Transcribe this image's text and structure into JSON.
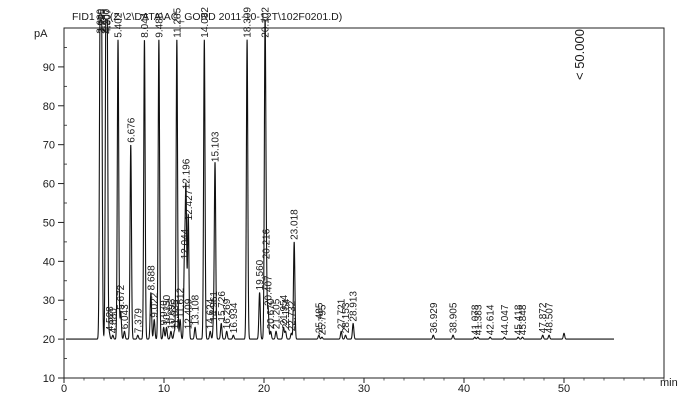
{
  "chart_data": {
    "type": "line",
    "title": "FID1 A, (Z:\\2\\DATA\\AC_GORD 2011-10-12T\\102F0201.D)",
    "ylabel": "pA",
    "xlabel": "min",
    "xlim": [
      0,
      60
    ],
    "ylim": [
      10,
      100
    ],
    "x_ticks": [
      0,
      10,
      20,
      30,
      40,
      50
    ],
    "y_ticks": [
      10,
      20,
      30,
      40,
      50,
      60,
      70,
      80,
      90
    ],
    "x_tick_labels": [
      "0",
      "10",
      "20",
      "30",
      "40",
      "50"
    ],
    "y_tick_labels": [
      "10",
      "20",
      "30",
      "40",
      "50",
      "60",
      "70",
      "80",
      "90"
    ],
    "baseline": 20,
    "off_scale_label": "< 50.000",
    "series": [
      {
        "peaks": [
          {
            "rt": 3.609,
            "label": "3.609",
            "height": 100
          },
          {
            "rt": 3.755,
            "label": "3.755",
            "height": 100
          },
          {
            "rt": 4.2,
            "label": "4.200",
            "height": 100
          },
          {
            "rt": 4.307,
            "label": "4.307",
            "height": 100
          },
          {
            "rt": 4.528,
            "label": "4.528",
            "height": 21.5
          },
          {
            "rt": 4.88,
            "label": "4.880",
            "height": 21
          },
          {
            "rt": 5.402,
            "label": "5.402",
            "height": 97
          },
          {
            "rt": 5.672,
            "label": "5.672",
            "height": 27
          },
          {
            "rt": 6.043,
            "label": "6.043",
            "height": 22
          },
          {
            "rt": 6.676,
            "label": "6.676",
            "height": 70
          },
          {
            "rt": 7.379,
            "label": "7.379",
            "height": 21
          },
          {
            "rt": 8.044,
            "label": "8.044",
            "height": 97
          },
          {
            "rt": 8.688,
            "label": "8.688",
            "height": 32
          },
          {
            "rt": 9.022,
            "label": "9.022",
            "height": 25
          },
          {
            "rt": 9.488,
            "label": "9.488",
            "height": 97
          },
          {
            "rt": 9.97,
            "label": "9.970",
            "height": 23
          },
          {
            "rt": 10.25,
            "label": "10.250",
            "height": 23
          },
          {
            "rt": 10.693,
            "label": "10.693",
            "height": 22
          },
          {
            "rt": 11.035,
            "label": "11.035",
            "height": 22
          },
          {
            "rt": 11.285,
            "label": "11.285",
            "height": 97
          },
          {
            "rt": 11.612,
            "label": "11.612",
            "height": 25
          },
          {
            "rt": 12.044,
            "label": "12.044",
            "height": 40
          },
          {
            "rt": 12.196,
            "label": "12.196",
            "height": 58
          },
          {
            "rt": 12.427,
            "label": "12.427",
            "height": 50
          },
          {
            "rt": 12.409,
            "label": "12.409",
            "height": 22
          },
          {
            "rt": 13.108,
            "label": "13.108",
            "height": 23
          },
          {
            "rt": 14.032,
            "label": "14.032",
            "height": 97
          },
          {
            "rt": 14.624,
            "label": "14.624",
            "height": 22
          },
          {
            "rt": 14.961,
            "label": "14.961",
            "height": 24
          },
          {
            "rt": 15.103,
            "label": "15.103",
            "height": 65
          },
          {
            "rt": 15.726,
            "label": "15.726",
            "height": 24
          },
          {
            "rt": 16.269,
            "label": "16.269",
            "height": 22
          },
          {
            "rt": 16.934,
            "label": "16.934",
            "height": 21
          },
          {
            "rt": 18.309,
            "label": "18.309",
            "height": 97
          },
          {
            "rt": 19.56,
            "label": "19.560",
            "height": 32
          },
          {
            "rt": 20.102,
            "label": "20.102",
            "height": 97
          },
          {
            "rt": 20.407,
            "label": "20.407",
            "height": 28
          },
          {
            "rt": 20.216,
            "label": "20.216",
            "height": 40
          },
          {
            "rt": 20.67,
            "label": "20.670",
            "height": 22
          },
          {
            "rt": 21.205,
            "label": "21.205",
            "height": 22
          },
          {
            "rt": 21.954,
            "label": "21.954",
            "height": 23
          },
          {
            "rt": 22.154,
            "label": "22.154",
            "height": 22
          },
          {
            "rt": 22.732,
            "label": "22.732",
            "height": 21.5
          },
          {
            "rt": 23.018,
            "label": "23.018",
            "height": 45
          },
          {
            "rt": 25.485,
            "label": "25.485",
            "height": 21
          },
          {
            "rt": 25.795,
            "label": "25.795",
            "height": 20.5
          },
          {
            "rt": 27.721,
            "label": "27.721",
            "height": 22
          },
          {
            "rt": 28.153,
            "label": "28.153",
            "height": 21
          },
          {
            "rt": 28.913,
            "label": "28.913",
            "height": 24
          },
          {
            "rt": 36.929,
            "label": "36.929",
            "height": 21
          },
          {
            "rt": 38.905,
            "label": "38.905",
            "height": 21
          },
          {
            "rt": 41.078,
            "label": "41.078",
            "height": 20.5
          },
          {
            "rt": 41.383,
            "label": "41.383",
            "height": 20.5
          },
          {
            "rt": 42.614,
            "label": "42.614",
            "height": 20.5
          },
          {
            "rt": 44.047,
            "label": "44.047",
            "height": 20.5
          },
          {
            "rt": 45.418,
            "label": "45.418",
            "height": 20.5
          },
          {
            "rt": 45.848,
            "label": "45.848",
            "height": 20.5
          },
          {
            "rt": 47.872,
            "label": "47.872",
            "height": 21
          },
          {
            "rt": 48.507,
            "label": "48.507",
            "height": 21
          },
          {
            "rt": 50.0,
            "label": "",
            "height": 21.5
          }
        ]
      }
    ]
  }
}
